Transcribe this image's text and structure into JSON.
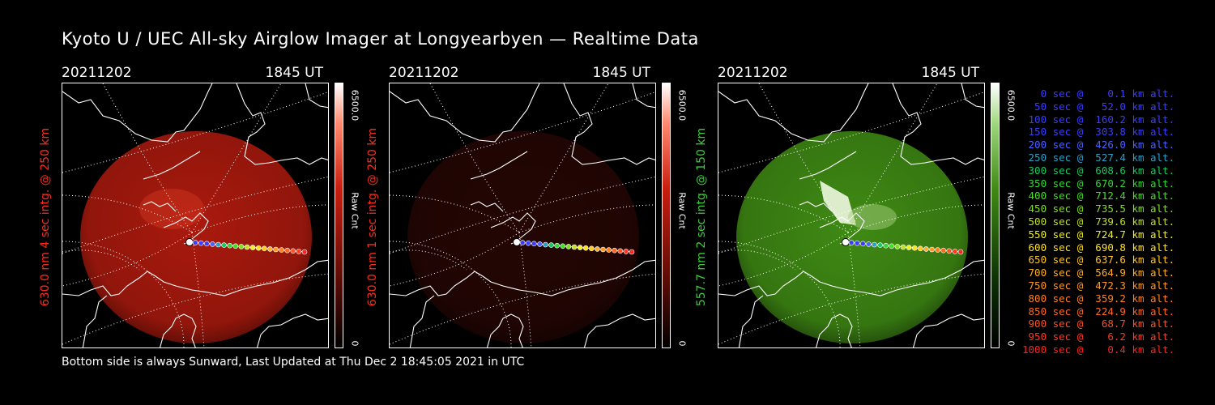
{
  "title": "Kyoto U / UEC All-sky Airglow Imager at Longyearbyen — Realtime Data",
  "footer": "Bottom side is always Sunward, Last Updated at Thu Dec  2 18:45:05 2021 in UTC",
  "panels": [
    {
      "date": "20211202",
      "time": "1845 UT",
      "side_label": "630.0 nm 4 sec intg. @ 250 km",
      "label_color": "#ff2a1a",
      "colorbar_max": "6500.0",
      "colorbar_mid": "Raw Cnt",
      "colorbar_min": "0",
      "color": "#c81e10",
      "brightness": 0.85
    },
    {
      "date": "20211202",
      "time": "1845 UT",
      "side_label": "630.0 nm 1 sec intg. @ 250 km",
      "label_color": "#ff2a1a",
      "colorbar_max": "6500.0",
      "colorbar_mid": "Raw Cnt",
      "colorbar_min": "0",
      "color": "#3c0a06",
      "brightness": 0.6
    },
    {
      "date": "20211202",
      "time": "1845 UT",
      "side_label": "557.7 nm 2 sec intg. @ 150 km",
      "label_color": "#38d038",
      "colorbar_max": "6500.0",
      "colorbar_mid": "Raw Cnt",
      "colorbar_min": "0",
      "color": "#3f8a14",
      "brightness": 1.0
    }
  ],
  "trajectory_legend": [
    {
      "text": "   0 sec @    0.1 km alt.",
      "color": "#3c3cff"
    },
    {
      "text": "  50 sec @   52.0 km alt.",
      "color": "#3c3cff"
    },
    {
      "text": " 100 sec @  160.2 km alt.",
      "color": "#3c3cff"
    },
    {
      "text": " 150 sec @  303.8 km alt.",
      "color": "#3c3cff"
    },
    {
      "text": " 200 sec @  426.0 km alt.",
      "color": "#4a60ff"
    },
    {
      "text": " 250 sec @  527.4 km alt.",
      "color": "#2aa0c8"
    },
    {
      "text": " 300 sec @  608.6 km alt.",
      "color": "#18c860"
    },
    {
      "text": " 350 sec @  670.2 km alt.",
      "color": "#30d830"
    },
    {
      "text": " 400 sec @  712.4 km alt.",
      "color": "#40e020"
    },
    {
      "text": " 450 sec @  735.5 km alt.",
      "color": "#80e020"
    },
    {
      "text": " 500 sec @  739.6 km alt.",
      "color": "#c0e020"
    },
    {
      "text": " 550 sec @  724.7 km alt.",
      "color": "#f0f020"
    },
    {
      "text": " 600 sec @  690.8 km alt.",
      "color": "#ffe020"
    },
    {
      "text": " 650 sec @  637.6 km alt.",
      "color": "#ffc820"
    },
    {
      "text": " 700 sec @  564.9 km alt.",
      "color": "#ffb020"
    },
    {
      "text": " 750 sec @  472.3 km alt.",
      "color": "#ff9820"
    },
    {
      "text": " 800 sec @  359.2 km alt.",
      "color": "#ff8020"
    },
    {
      "text": " 850 sec @  224.9 km alt.",
      "color": "#ff6820"
    },
    {
      "text": " 900 sec @   68.7 km alt.",
      "color": "#ff5020"
    },
    {
      "text": " 950 sec @    6.2 km alt.",
      "color": "#ff3820"
    },
    {
      "text": "1000 sec @    0.4 km alt.",
      "color": "#ff2020"
    }
  ]
}
